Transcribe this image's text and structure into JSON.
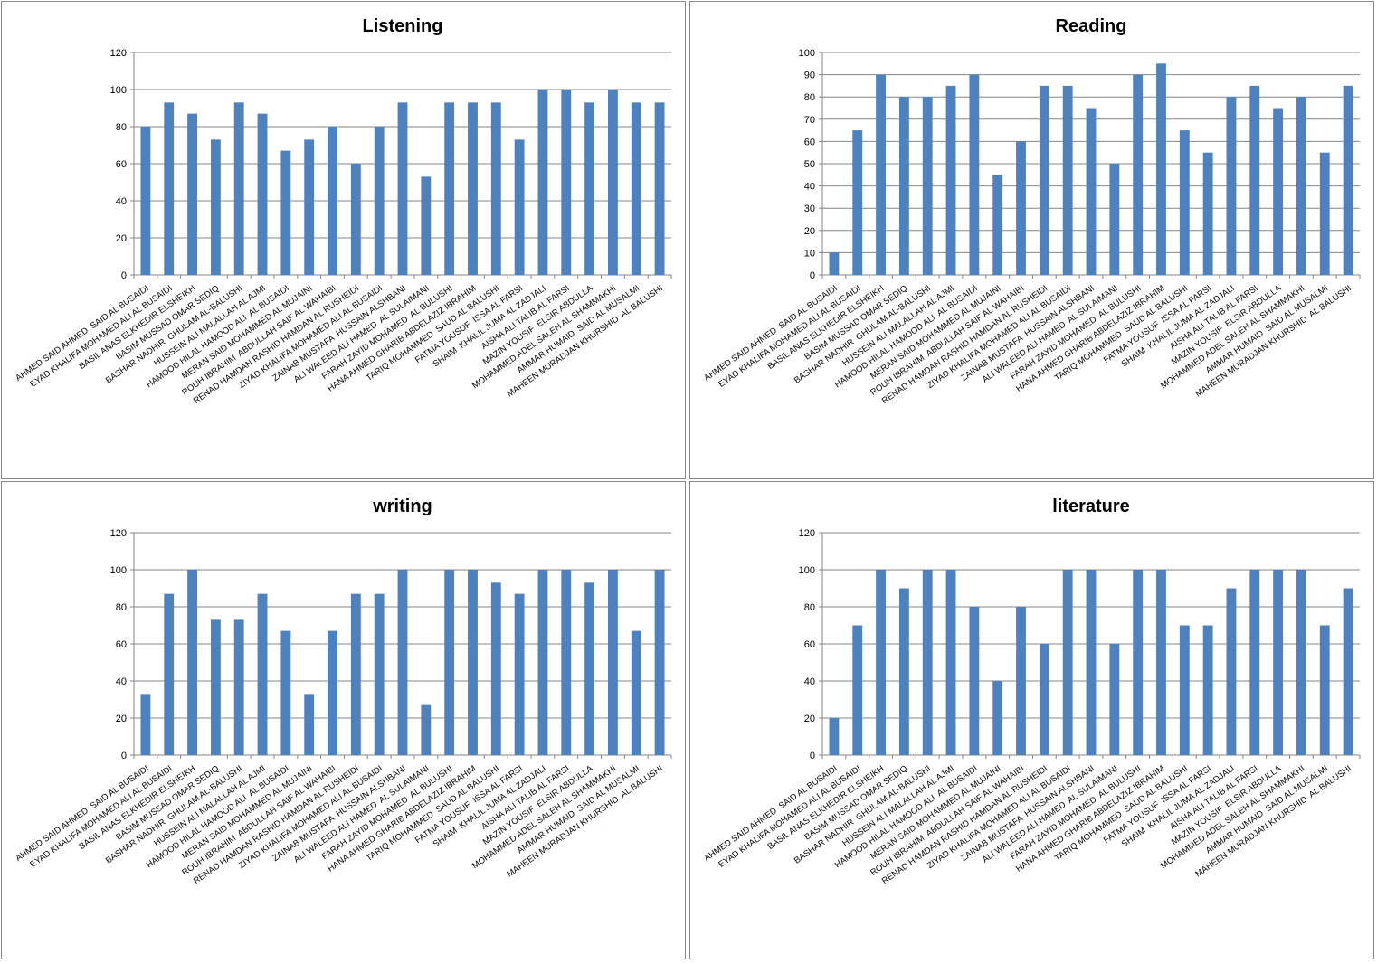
{
  "colors": {
    "bar": "#4F81BD",
    "grid": "#868686",
    "border": "#888888"
  },
  "chart_data": [
    {
      "type": "bar",
      "title": "Listening",
      "ylim": [
        0,
        120
      ],
      "yticks": [
        0,
        20,
        40,
        60,
        80,
        100,
        120
      ],
      "grid": true,
      "legend": "none",
      "categories": [
        "AHMED SAID AHMED  SAID AL BUSAIDI",
        "EYAD KHALIFA MOHAMED ALI AL BUSAIDI",
        "BASIL ANAS ELKHEDIR ELSHEIKH",
        "BASIM MUSSAD OMAR SEDIQ",
        "BASHAR NADHIR  GHULAM AL-BALUSHI",
        "HUSSEIN ALI MALALLAH AL AJMI",
        "HAMOOD HILAL HAMOOD ALI  AL BUSAIDI",
        "MERAN SAID MOHAMMED AL MUJAINI",
        "ROUH IBRAHIM  ABDULLAH SAIF AL WAHAIBI",
        "RENAD HAMDAN RASHID HAMDAN AL RUSHEIDI",
        "ZIYAD KHALIFA MOHAMED ALI AL BUSAIDI",
        "ZAINAB MUSTAFA  HUSSAIN ALSHBANI",
        "ALI WALEED ALI HAMED  AL SULAIMANI",
        "FARAH ZAYID MOHAMED  AL BULUSHI",
        "HANA AHMED GHARIB ABDELAZIZ IBRAHIM",
        "TARIQ MOHAMMED  SAUD AL BALUSHI",
        "FATMA YOUSUF  ISSA AL FARSI",
        "SHAIM  KHALIL JUMA AL ZADJALI",
        "AISHA ALI TALIB AL FARSI",
        "MAZIN YOUSIF  ELSIR ABDULLA",
        "MOHAMMED ADEL SALEH AL SHAMMAKHI",
        "AMMAR HUMAID  SAID AL MUSALMI",
        "MAHEEN MURADJAN KHURSHID  AL BALUSHI"
      ],
      "values": [
        80,
        93,
        87,
        73,
        93,
        87,
        67,
        73,
        80,
        60,
        80,
        93,
        53,
        93,
        93,
        93,
        73,
        100,
        100,
        93,
        100,
        93,
        93
      ]
    },
    {
      "type": "bar",
      "title": "Reading",
      "ylim": [
        0,
        100
      ],
      "yticks": [
        0,
        10,
        20,
        30,
        40,
        50,
        60,
        70,
        80,
        90,
        100
      ],
      "grid": true,
      "legend": "none",
      "categories": [
        "AHMED SAID AHMED  SAID AL BUSAIDI",
        "EYAD KHALIFA MOHAMED ALI AL BUSAIDI",
        "BASIL ANAS ELKHEDIR ELSHEIKH",
        "BASIM MUSSAD OMAR SEDIQ",
        "BASHAR NADHIR  GHULAM AL-BALUSHI",
        "HUSSEIN ALI MALALLAH AL AJMI",
        "HAMOOD HILAL HAMOOD ALI  AL BUSAIDI",
        "MERAN SAID MOHAMMED AL MUJAINI",
        "ROUH IBRAHIM  ABDULLAH SAIF AL WAHAIBI",
        "RENAD HAMDAN RASHID HAMDAN AL RUSHEIDI",
        "ZIYAD KHALIFA MOHAMED ALI AL BUSAIDI",
        "ZAINAB MUSTAFA  HUSSAIN ALSHBANI",
        "ALI WALEED ALI HAMED  AL SULAIMANI",
        "FARAH ZAYID MOHAMED  AL BULUSHI",
        "HANA AHMED GHARIB ABDELAZIZ IBRAHIM",
        "TARIQ MOHAMMED  SAUD AL BALUSHI",
        "FATMA YOUSUF  ISSA AL FARSI",
        "SHAIM  KHALIL JUMA AL ZADJALI",
        "AISHA ALI TALIB AL FARSI",
        "MAZIN YOUSIF  ELSIR ABDULLA",
        "MOHAMMED ADEL SALEH AL SHAMMAKHI",
        "AMMAR HUMAID  SAID AL MUSALMI",
        "MAHEEN MURADJAN KHURSHID  AL BALUSHI"
      ],
      "values": [
        10,
        65,
        90,
        80,
        80,
        85,
        90,
        45,
        60,
        85,
        85,
        75,
        50,
        90,
        95,
        65,
        55,
        80,
        85,
        75,
        80,
        55,
        85
      ]
    },
    {
      "type": "bar",
      "title": "writing",
      "ylim": [
        0,
        120
      ],
      "yticks": [
        0,
        20,
        40,
        60,
        80,
        100,
        120
      ],
      "grid": true,
      "legend": "none",
      "categories": [
        "AHMED SAID AHMED  SAID AL BUSAIDI",
        "EYAD KHALIFA MOHAMED ALI AL BUSAIDI",
        "BASIL ANAS ELKHEDIR ELSHEIKH",
        "BASIM MUSSAD OMAR SEDIQ",
        "BASHAR NADHIR  GHULAM AL-BALUSHI",
        "HUSSEIN ALI MALALLAH AL AJMI",
        "HAMOOD HILAL HAMOOD ALI  AL BUSAIDI",
        "MERAN SAID MOHAMMED AL MUJAINI",
        "ROUH IBRAHIM  ABDULLAH SAIF AL WAHAIBI",
        "RENAD HAMDAN RASHID HAMDAN AL RUSHEIDI",
        "ZIYAD KHALIFA MOHAMED ALI AL BUSAIDI",
        "ZAINAB MUSTAFA  HUSSAIN ALSHBANI",
        "ALI WALEED ALI HAMED  AL SULAIMANI",
        "FARAH ZAYID MOHAMED  AL BULUSHI",
        "HANA AHMED GHARIB ABDELAZIZ IBRAHIM",
        "TARIQ MOHAMMED  SAUD AL BALUSHI",
        "FATMA YOUSUF  ISSA AL FARSI",
        "SHAIM  KHALIL JUMA AL ZADJALI",
        "AISHA ALI TALIB AL FARSI",
        "MAZIN YOUSIF  ELSIR ABDULLA",
        "MOHAMMED ADEL SALEH AL SHAMMAKHI",
        "AMMAR HUMAID  SAID AL MUSALMI",
        "MAHEEN MURADJAN KHURSHID  AL BALUSHI"
      ],
      "values": [
        33,
        87,
        100,
        73,
        73,
        87,
        67,
        33,
        67,
        87,
        87,
        100,
        27,
        100,
        100,
        93,
        87,
        100,
        100,
        93,
        100,
        67,
        100
      ]
    },
    {
      "type": "bar",
      "title": "literature",
      "ylim": [
        0,
        120
      ],
      "yticks": [
        0,
        20,
        40,
        60,
        80,
        100,
        120
      ],
      "grid": true,
      "legend": "none",
      "categories": [
        "AHMED SAID AHMED  SAID AL BUSAIDI",
        "EYAD KHALIFA MOHAMED ALI AL BUSAIDI",
        "BASIL ANAS ELKHEDIR ELSHEIKH",
        "BASIM MUSSAD OMAR SEDIQ",
        "BASHAR NADHIR  GHULAM AL-BALUSHI",
        "HUSSEIN ALI MALALLAH AL AJMI",
        "HAMOOD HILAL HAMOOD ALI  AL BUSAIDI",
        "MERAN SAID MOHAMMED AL MUJAINI",
        "ROUH IBRAHIM  ABDULLAH SAIF AL WAHAIBI",
        "RENAD HAMDAN RASHID HAMDAN AL RUSHEIDI",
        "ZIYAD KHALIFA MOHAMED ALI AL BUSAIDI",
        "ZAINAB MUSTAFA  HUSSAIN ALSHBANI",
        "ALI WALEED ALI HAMED  AL SULAIMANI",
        "FARAH ZAYID MOHAMED  AL BULUSHI",
        "HANA AHMED GHARIB ABDELAZIZ IBRAHIM",
        "TARIQ MOHAMMED  SAUD AL BALUSHI",
        "FATMA YOUSUF  ISSA AL FARSI",
        "SHAIM  KHALIL JUMA AL ZADJALI",
        "AISHA ALI TALIB AL FARSI",
        "MAZIN YOUSIF  ELSIR ABDULLA",
        "MOHAMMED ADEL SALEH AL SHAMMAKHI",
        "AMMAR HUMAID  SAID AL MUSALMI",
        "MAHEEN MURADJAN KHURSHID  AL BALUSHI"
      ],
      "values": [
        20,
        70,
        100,
        90,
        100,
        100,
        80,
        40,
        80,
        60,
        100,
        100,
        60,
        100,
        100,
        70,
        70,
        90,
        100,
        100,
        100,
        70,
        90
      ]
    }
  ]
}
